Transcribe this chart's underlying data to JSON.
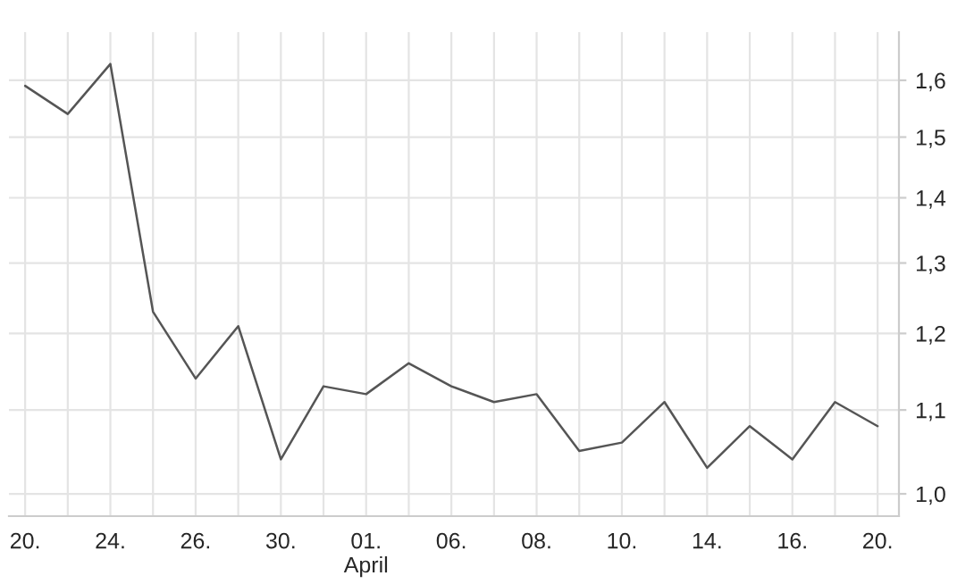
{
  "chart_data": {
    "type": "line",
    "categories": [
      "20.",
      null,
      "24.",
      null,
      "26.",
      null,
      "30.",
      null,
      "01.\nApril",
      null,
      "06.",
      null,
      "08.",
      null,
      "10.",
      null,
      "14.",
      null,
      "16.",
      null,
      "20."
    ],
    "series": [
      {
        "color": "#555555",
        "values": [
          1.59,
          1.54,
          1.63,
          1.23,
          1.14,
          1.21,
          1.04,
          1.13,
          1.12,
          1.16,
          1.13,
          1.11,
          1.12,
          1.05,
          1.06,
          1.11,
          1.03,
          1.08,
          1.04,
          1.11,
          1.08
        ]
      }
    ],
    "log": "y",
    "ylim": [
      0.975,
      1.69
    ],
    "yticks": [
      {
        "value": 1.0,
        "label": "1,0"
      },
      {
        "value": 1.1,
        "label": "1,1"
      },
      {
        "value": 1.2,
        "label": "1,2"
      },
      {
        "value": 1.3,
        "label": "1,3"
      },
      {
        "value": 1.4,
        "label": "1,4"
      },
      {
        "value": 1.5,
        "label": "1,5"
      },
      {
        "value": 1.6,
        "label": "1,6"
      }
    ],
    "grid": true,
    "line_style": "solid",
    "marker": "none"
  }
}
